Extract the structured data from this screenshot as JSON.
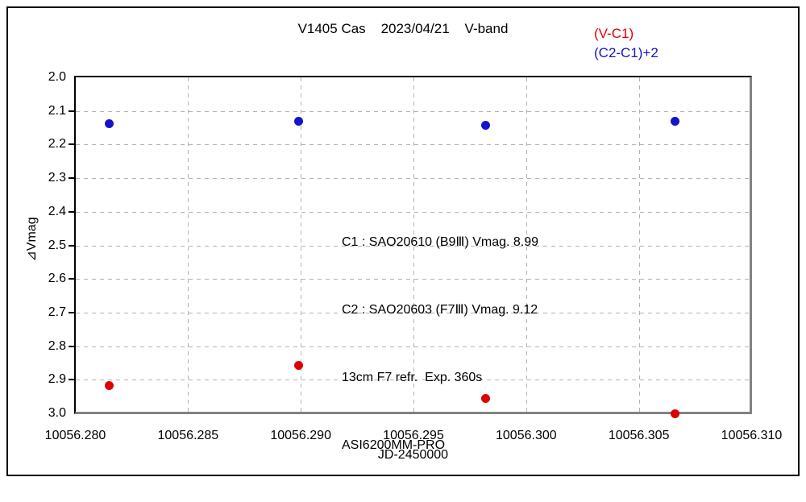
{
  "chart_data": {
    "type": "scatter",
    "title": "V1405 Cas    2023/04/21    V-band",
    "xlabel": "JD-2450000",
    "ylabel": "⊿Vmag",
    "xlim": [
      10056.28,
      10056.31
    ],
    "ylim_top_to_bottom": [
      2.0,
      3.0
    ],
    "y_axis_inverted_magnitudes": true,
    "grid": true,
    "legend_position": "top-right-outside",
    "x_ticks": [
      10056.28,
      10056.285,
      10056.29,
      10056.295,
      10056.3,
      10056.305,
      10056.31
    ],
    "x_tick_labels": [
      "10056.280",
      "10056.285",
      "10056.290",
      "10056.295",
      "10056.300",
      "10056.305",
      "10056.310"
    ],
    "y_ticks": [
      2.0,
      2.1,
      2.2,
      2.3,
      2.4,
      2.5,
      2.6,
      2.7,
      2.8,
      2.9,
      3.0
    ],
    "y_tick_labels": [
      "2.0",
      "2.1",
      "2.2",
      "2.3",
      "2.4",
      "2.5",
      "2.6",
      "2.7",
      "2.8",
      "2.9",
      "3.0"
    ],
    "x": [
      10056.2815,
      10056.2899,
      10056.2982,
      10056.3066
    ],
    "series": [
      {
        "name": "(V-C1)",
        "color": "#dd0000",
        "y": [
          2.917,
          2.857,
          2.955,
          3.0
        ]
      },
      {
        "name": "(C2-C1)+2",
        "color": "#1414cc",
        "y": [
          2.137,
          2.131,
          2.142,
          2.13
        ]
      }
    ]
  },
  "legend": {
    "items": [
      {
        "label": "(V-C1)",
        "color": "#dd0000"
      },
      {
        "label": "(C2-C1)+2",
        "color": "#1414cc"
      }
    ]
  },
  "annotation": {
    "lines": [
      "C1 : SAO20610 (B9Ⅲ) Vmag. 8.99",
      "C2 : SAO20603 (F7Ⅲ) Vmag. 9.12",
      "13cm F7 refr.  Exp. 360s",
      "ASI6200MM-PRO"
    ]
  }
}
